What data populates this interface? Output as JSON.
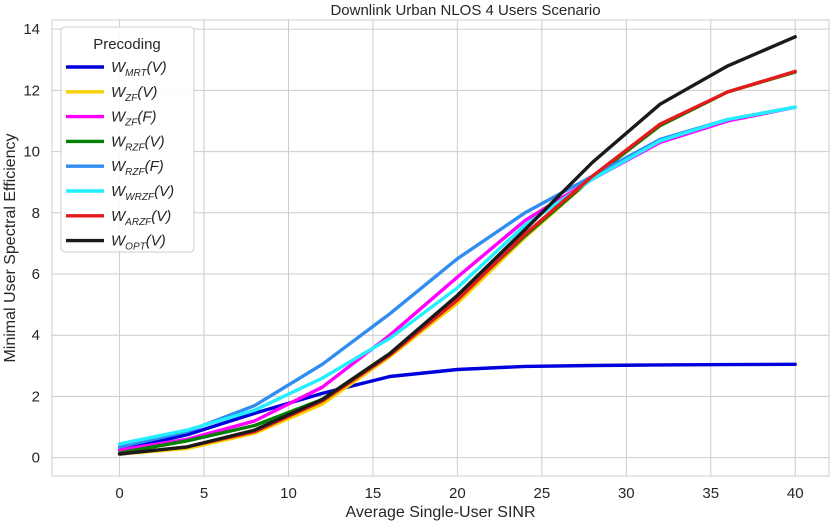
{
  "chart_data": {
    "type": "line",
    "title": "Downlink Urban NLOS 4 Users Scenario",
    "xlabel": "Average Single-User SINR",
    "ylabel": "Minimal User Spectral Efficiency",
    "xlim": [
      -4,
      42
    ],
    "ylim": [
      -0.6,
      14.3
    ],
    "xticks": [
      0,
      5,
      10,
      15,
      20,
      25,
      30,
      35,
      40
    ],
    "yticks": [
      0,
      2,
      4,
      6,
      8,
      10,
      12,
      14
    ],
    "grid": true,
    "legend": {
      "title": "Precoding",
      "placement": "top-left"
    },
    "x": [
      0,
      4,
      8,
      12,
      16,
      20,
      24,
      28,
      32,
      36,
      40
    ],
    "series": [
      {
        "name": "W_MRT(V)",
        "label_main": "W",
        "label_sub": "MRT",
        "label_arg": "(V)",
        "color": "#0000dd",
        "values": [
          0.25,
          0.75,
          1.45,
          2.1,
          2.65,
          2.88,
          2.98,
          3.01,
          3.03,
          3.04,
          3.05
        ]
      },
      {
        "name": "W_ZF(V)",
        "label_main": "W",
        "label_sub": "ZF",
        "label_arg": "(V)",
        "color": "#f5d200",
        "values": [
          0.12,
          0.3,
          0.8,
          1.75,
          3.3,
          5.05,
          7.2,
          9.15,
          10.85,
          11.95,
          12.6
        ]
      },
      {
        "name": "W_ZF(F)",
        "label_main": "W",
        "label_sub": "ZF",
        "label_arg": "(F)",
        "color": "#ff00ff",
        "values": [
          0.25,
          0.6,
          1.2,
          2.3,
          4.0,
          5.9,
          7.75,
          9.1,
          10.3,
          11.0,
          11.45
        ]
      },
      {
        "name": "W_RZF(V)",
        "label_main": "W",
        "label_sub": "RZF",
        "label_arg": "(V)",
        "color": "#008000",
        "values": [
          0.15,
          0.55,
          1.05,
          1.9,
          3.4,
          5.2,
          7.25,
          9.15,
          10.85,
          11.95,
          12.6
        ]
      },
      {
        "name": "W_RZF(F)",
        "label_main": "W",
        "label_sub": "RZF",
        "label_arg": "(F)",
        "color": "#2f8cf0",
        "values": [
          0.35,
          0.85,
          1.7,
          3.05,
          4.7,
          6.5,
          8.0,
          9.2,
          10.4,
          11.05,
          11.45
        ]
      },
      {
        "name": "W_WRZF(V)",
        "label_main": "W",
        "label_sub": "WRZF",
        "label_arg": "(V)",
        "color": "#22eeff",
        "values": [
          0.45,
          0.9,
          1.55,
          2.6,
          3.9,
          5.55,
          7.6,
          9.1,
          10.35,
          11.05,
          11.45
        ]
      },
      {
        "name": "W_ARZF(V)",
        "label_main": "W",
        "label_sub": "ARZF",
        "label_arg": "(V)",
        "color": "#e41a1c",
        "values": [
          0.12,
          0.35,
          0.85,
          1.85,
          3.35,
          5.15,
          7.3,
          9.2,
          10.9,
          11.95,
          12.62
        ]
      },
      {
        "name": "W_OPT(V)",
        "label_main": "W",
        "label_sub": "OPT",
        "label_arg": "(V)",
        "color": "#1a1a1a",
        "values": [
          0.12,
          0.35,
          0.9,
          1.9,
          3.4,
          5.3,
          7.45,
          9.65,
          11.55,
          12.8,
          13.75
        ]
      }
    ]
  }
}
